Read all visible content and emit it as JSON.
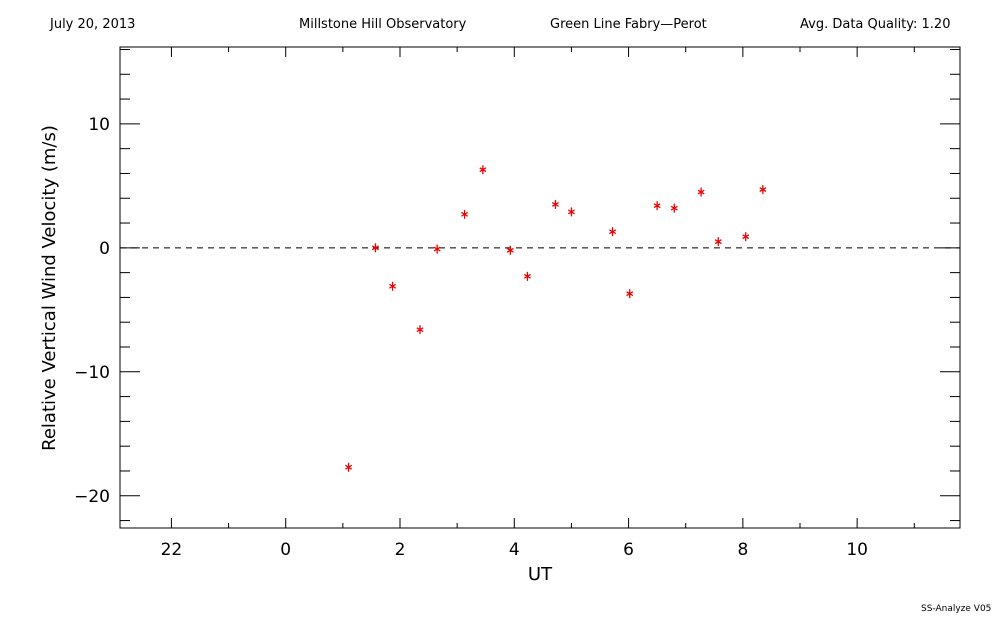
{
  "header": {
    "date": "July 20, 2013",
    "observatory": "Millstone Hill Observatory",
    "instrument": "Green Line Fabry—Perot",
    "quality": "Avg. Data Quality: 1.20"
  },
  "footer": "SS-Analyze V05",
  "chart_data": {
    "type": "scatter",
    "title": "",
    "xlabel": "UT",
    "ylabel": "Relative Vertical Wind Velocity (m/s)",
    "x_ticks": [
      {
        "value": 22,
        "label": "22"
      },
      {
        "value": 24,
        "label": "0"
      },
      {
        "value": 26,
        "label": "2"
      },
      {
        "value": 28,
        "label": "4"
      },
      {
        "value": 30,
        "label": "6"
      },
      {
        "value": 32,
        "label": "8"
      },
      {
        "value": 34,
        "label": "10"
      }
    ],
    "x_tick_unit": "UT hours (labels wrap at 24)",
    "xlim": [
      21.1,
      35.8
    ],
    "y_ticks": [
      {
        "value": -20,
        "label": "−20"
      },
      {
        "value": -10,
        "label": "−10"
      },
      {
        "value": 0,
        "label": "0"
      },
      {
        "value": 10,
        "label": "10"
      }
    ],
    "ylim": [
      -22.6,
      16.2
    ],
    "reference_line": {
      "y": 0,
      "style": "dashed"
    },
    "marker": "asterisk",
    "color": "#ee0000",
    "series": [
      {
        "points": [
          {
            "x": 25.1,
            "y": -17.7
          },
          {
            "x": 25.57,
            "y": 0.0
          },
          {
            "x": 25.87,
            "y": -3.1
          },
          {
            "x": 26.35,
            "y": -6.6
          },
          {
            "x": 26.65,
            "y": -0.1
          },
          {
            "x": 27.13,
            "y": 2.7
          },
          {
            "x": 27.45,
            "y": 6.3
          },
          {
            "x": 27.93,
            "y": -0.2
          },
          {
            "x": 28.23,
            "y": -2.3
          },
          {
            "x": 28.72,
            "y": 3.5
          },
          {
            "x": 29.0,
            "y": 2.9
          },
          {
            "x": 29.72,
            "y": 1.3
          },
          {
            "x": 30.02,
            "y": -3.7
          },
          {
            "x": 30.5,
            "y": 3.4
          },
          {
            "x": 30.8,
            "y": 3.2
          },
          {
            "x": 31.27,
            "y": 4.5
          },
          {
            "x": 31.57,
            "y": 0.5
          },
          {
            "x": 32.05,
            "y": 0.9
          },
          {
            "x": 32.35,
            "y": 4.7
          }
        ]
      }
    ]
  }
}
